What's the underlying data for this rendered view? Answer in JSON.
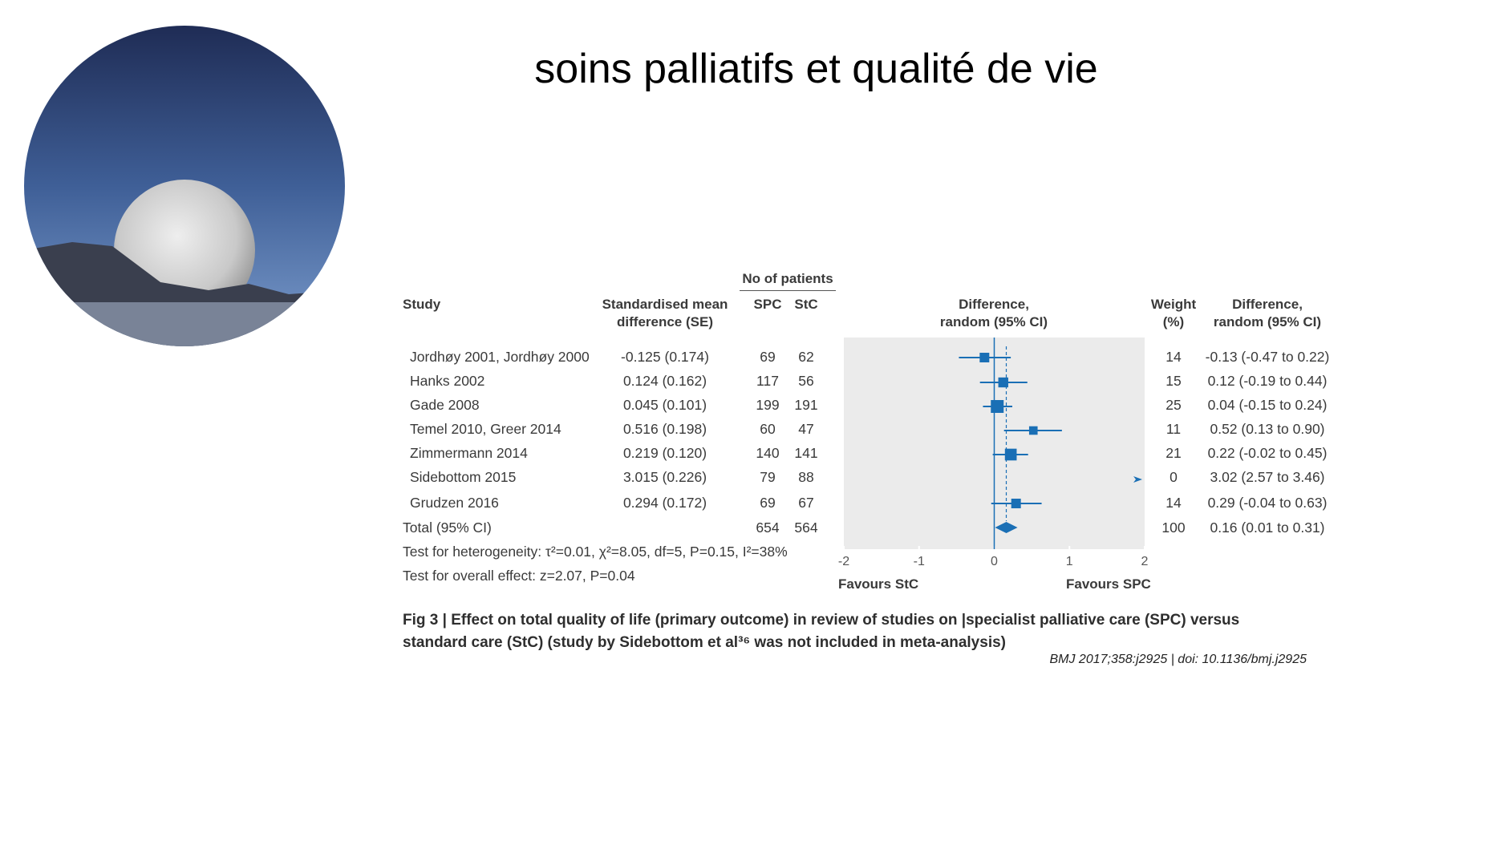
{
  "title": "soins palliatifs et qualité de vie",
  "headers": {
    "no_of_patients": "No of patients",
    "study": "Study",
    "smd_line1": "Standardised mean",
    "smd_line2": "difference (SE)",
    "spc": "SPC",
    "stc": "StC",
    "diff_line1": "Difference,",
    "diff_line2": "random (95% CI)",
    "weight_line1": "Weight",
    "weight_line2": "(%)",
    "diff2_line1": "Difference,",
    "diff2_line2": "random (95% CI)"
  },
  "rows": [
    {
      "study": "Jordhøy 2001, Jordhøy 2000",
      "smd": "-0.125 (0.174)",
      "spc": "69",
      "stc": "62",
      "weight": "14",
      "diff": "-0.13 (-0.47 to 0.22)"
    },
    {
      "study": "Hanks 2002",
      "smd": "0.124 (0.162)",
      "spc": "117",
      "stc": "56",
      "weight": "15",
      "diff": "0.12 (-0.19 to 0.44)"
    },
    {
      "study": "Gade 2008",
      "smd": "0.045 (0.101)",
      "spc": "199",
      "stc": "191",
      "weight": "25",
      "diff": "0.04 (-0.15 to 0.24)"
    },
    {
      "study": "Temel 2010, Greer 2014",
      "smd": "0.516 (0.198)",
      "spc": "60",
      "stc": "47",
      "weight": "11",
      "diff": "0.52 (0.13 to 0.90)"
    },
    {
      "study": "Zimmermann 2014",
      "smd": "0.219 (0.120)",
      "spc": "140",
      "stc": "141",
      "weight": "21",
      "diff": "0.22 (-0.02 to 0.45)"
    },
    {
      "study": "Sidebottom 2015",
      "smd": "3.015 (0.226)",
      "spc": "79",
      "stc": "88",
      "weight": "0",
      "diff": "3.02 (2.57 to 3.46)"
    },
    {
      "study": "Grudzen 2016",
      "smd": "0.294 (0.172)",
      "spc": "69",
      "stc": "67",
      "weight": "14",
      "diff": "0.29 (-0.04 to 0.63)"
    }
  ],
  "total": {
    "label": "Total (95% CI)",
    "spc": "654",
    "stc": "564",
    "weight": "100",
    "diff": "0.16 (0.01 to 0.31)"
  },
  "heterogeneity": "Test for heterogeneity: τ²=0.01, χ²=8.05, df=5, P=0.15, I²=38%",
  "overall_effect": "Test for overall effect: z=2.07, P=0.04",
  "favours_left": "Favours StC",
  "favours_right": "Favours SPC",
  "caption_line1": "Fig 3 | Effect on total quality of life (primary outcome) in review of studies on |specialist palliative care (SPC) versus",
  "caption_line2": "standard care (StC) (study by Sidebottom et al³⁶ was not included in meta-analysis)",
  "citation": "BMJ 2017;358:j2925 | doi: 10.1136/bmj.j2925",
  "colors": {
    "marker": "#1a6fb5",
    "plot_bg": "#ebebeb"
  },
  "chart_data": {
    "type": "forest",
    "xlim": [
      -2,
      2
    ],
    "ticks": [
      "-2",
      "-1",
      "0",
      "1",
      "2"
    ],
    "tick_values": [
      -2,
      -1,
      0,
      1,
      2
    ],
    "points": [
      {
        "est": -0.13,
        "lo": -0.47,
        "hi": 0.22,
        "weight": 14
      },
      {
        "est": 0.12,
        "lo": -0.19,
        "hi": 0.44,
        "weight": 15
      },
      {
        "est": 0.04,
        "lo": -0.15,
        "hi": 0.24,
        "weight": 25
      },
      {
        "est": 0.52,
        "lo": 0.13,
        "hi": 0.9,
        "weight": 11
      },
      {
        "est": 0.22,
        "lo": -0.02,
        "hi": 0.45,
        "weight": 21
      },
      {
        "est": 3.02,
        "lo": 2.57,
        "hi": 3.46,
        "weight": 0,
        "off_scale": true
      },
      {
        "est": 0.29,
        "lo": -0.04,
        "hi": 0.63,
        "weight": 14
      }
    ],
    "pooled": {
      "est": 0.16,
      "lo": 0.01,
      "hi": 0.31
    }
  }
}
